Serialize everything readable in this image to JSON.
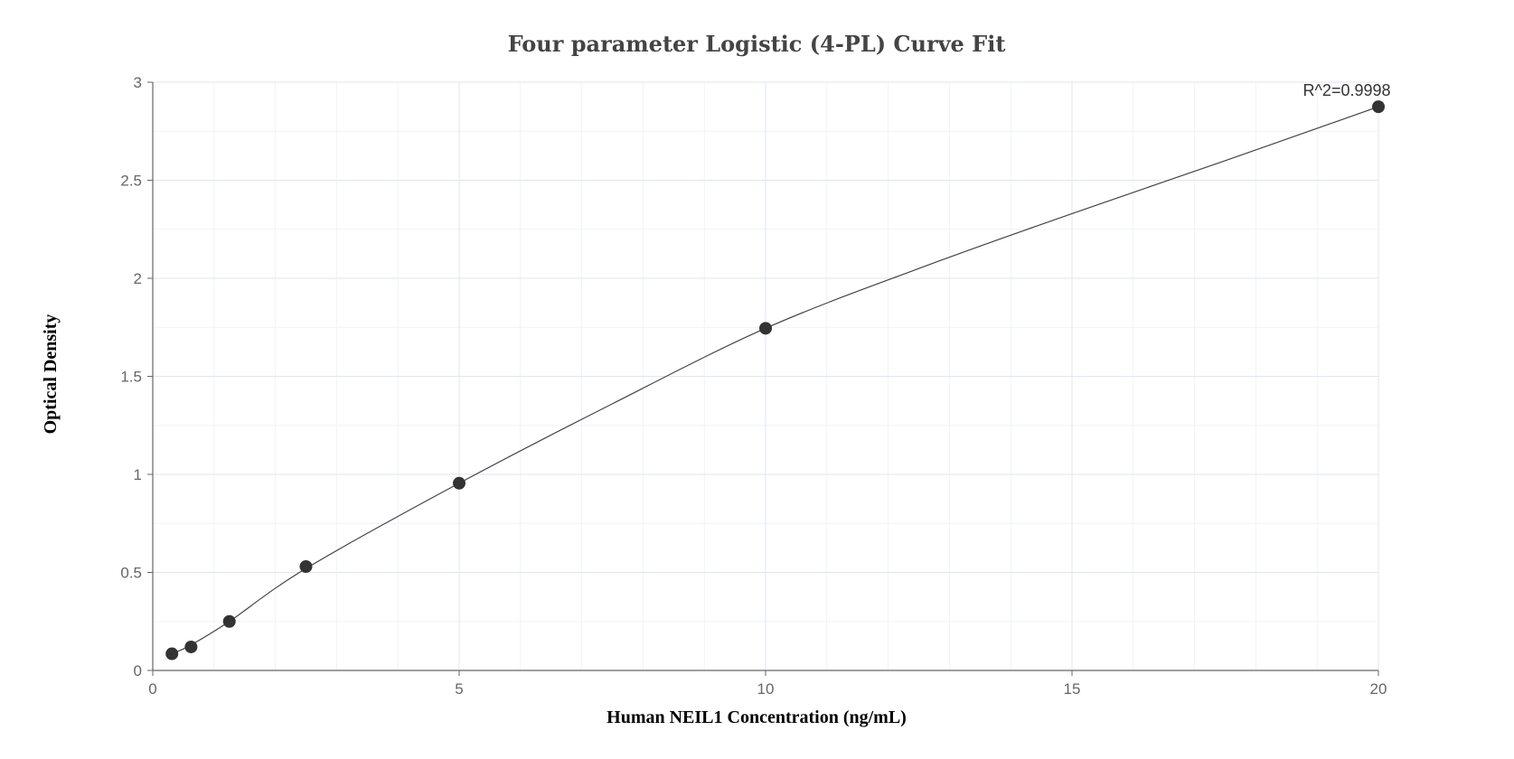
{
  "chart_data": {
    "type": "scatter",
    "title": "Four parameter Logistic (4-PL) Curve Fit",
    "xlabel": "Human NEIL1 Concentration (ng/mL)",
    "ylabel": "Optical Density",
    "xlim": [
      0,
      20
    ],
    "ylim": [
      0,
      3
    ],
    "x_ticks": [
      "0",
      "5",
      "10",
      "15",
      "20"
    ],
    "y_ticks": [
      "0",
      "0.5",
      "1",
      "1.5",
      "2",
      "2.5",
      "3"
    ],
    "grid": true,
    "annotation": "R^2=0.9998",
    "points": {
      "x": [
        0.313,
        0.625,
        1.25,
        2.5,
        5,
        10,
        20
      ],
      "y": [
        0.085,
        0.12,
        0.25,
        0.53,
        0.955,
        1.745,
        2.875
      ]
    },
    "fit_curve": {
      "x": [
        0.313,
        0.625,
        1.25,
        2.5,
        5,
        7.5,
        10,
        12.5,
        15,
        17.5,
        20
      ],
      "y": [
        0.085,
        0.13,
        0.25,
        0.52,
        0.955,
        1.36,
        1.745,
        2.05,
        2.33,
        2.6,
        2.875
      ]
    }
  }
}
